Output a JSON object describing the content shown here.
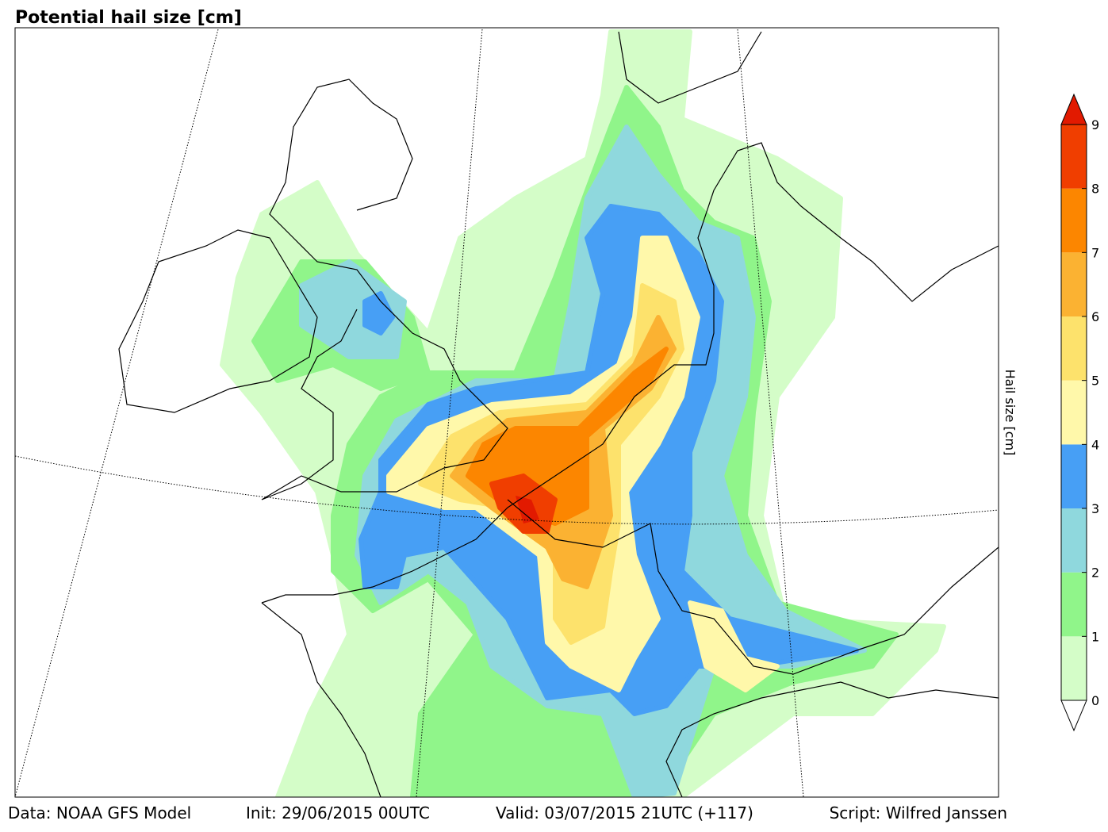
{
  "title": "Potential hail size [cm]",
  "colorbar": {
    "label": "Hail size [cm]",
    "ticks": [
      0,
      1,
      2,
      3,
      4,
      5,
      6,
      7,
      8,
      9
    ],
    "colors": [
      "#d4fdc8",
      "#90f58a",
      "#8fd8dd",
      "#479ff5",
      "#fff8aa",
      "#fde26c",
      "#fbb232",
      "#fc8600",
      "#f03e00"
    ],
    "over_color": "#e21a00"
  },
  "footer": {
    "data": "Data: NOAA GFS Model",
    "init": "Init: 29/06/2015 00UTC",
    "valid": "Valid: 03/07/2015 21UTC (+117)",
    "script": "Script: Wilfred Janssen"
  }
}
